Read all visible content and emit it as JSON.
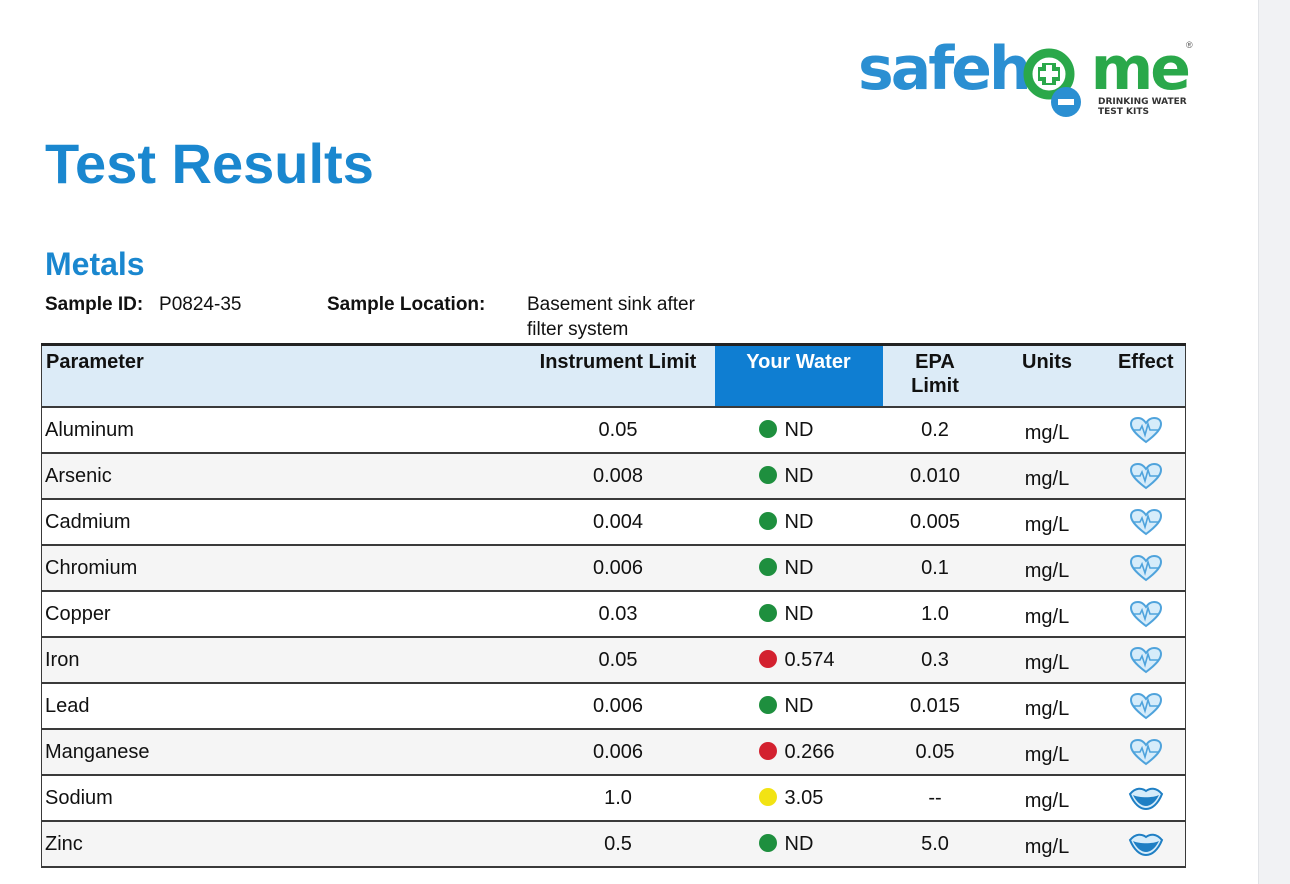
{
  "logo": {
    "word_before": "safeh",
    "word_after": "me",
    "tagline_line1": "DRINKING WATER",
    "tagline_line2": "TEST KITS",
    "registered": "®"
  },
  "title": "Test Results",
  "section": "Metals",
  "sample": {
    "id_label": "Sample ID:",
    "id_value": "P0824-35",
    "location_label": "Sample Location:",
    "location_line1": "Basement sink after",
    "location_line2": "filter system"
  },
  "table": {
    "headers": {
      "parameter": "Parameter",
      "instrument_limit": "Instrument Limit",
      "your_water": "Your Water",
      "epa_limit_line1": "EPA",
      "epa_limit_line2": "Limit",
      "units": "Units",
      "effect": "Effect"
    },
    "rows": [
      {
        "parameter": "Aluminum",
        "instrument_limit": "0.05",
        "status": "green",
        "your_water": "ND",
        "epa_limit": "0.2",
        "units": "mg/L",
        "effect": "heart-icon"
      },
      {
        "parameter": "Arsenic",
        "instrument_limit": "0.008",
        "status": "green",
        "your_water": "ND",
        "epa_limit": "0.010",
        "units": "mg/L",
        "effect": "heart-icon"
      },
      {
        "parameter": "Cadmium",
        "instrument_limit": "0.004",
        "status": "green",
        "your_water": "ND",
        "epa_limit": "0.005",
        "units": "mg/L",
        "effect": "heart-icon"
      },
      {
        "parameter": "Chromium",
        "instrument_limit": "0.006",
        "status": "green",
        "your_water": "ND",
        "epa_limit": "0.1",
        "units": "mg/L",
        "effect": "heart-icon"
      },
      {
        "parameter": "Copper",
        "instrument_limit": "0.03",
        "status": "green",
        "your_water": "ND",
        "epa_limit": "1.0",
        "units": "mg/L",
        "effect": "heart-icon"
      },
      {
        "parameter": "Iron",
        "instrument_limit": "0.05",
        "status": "red",
        "your_water": "0.574",
        "epa_limit": "0.3",
        "units": "mg/L",
        "effect": "heart-icon"
      },
      {
        "parameter": "Lead",
        "instrument_limit": "0.006",
        "status": "green",
        "your_water": "ND",
        "epa_limit": "0.015",
        "units": "mg/L",
        "effect": "heart-icon"
      },
      {
        "parameter": "Manganese",
        "instrument_limit": "0.006",
        "status": "red",
        "your_water": "0.266",
        "epa_limit": "0.05",
        "units": "mg/L",
        "effect": "heart-icon"
      },
      {
        "parameter": "Sodium",
        "instrument_limit": "1.0",
        "status": "yellow",
        "your_water": "3.05",
        "epa_limit": "--",
        "units": "mg/L",
        "effect": "mouth-icon"
      },
      {
        "parameter": "Zinc",
        "instrument_limit": "0.5",
        "status": "green",
        "your_water": "ND",
        "epa_limit": "5.0",
        "units": "mg/L",
        "effect": "mouth-icon"
      }
    ]
  },
  "colors": {
    "brand_blue": "#1a87cf",
    "brand_green": "#2aa84a",
    "header_bg": "#dcebf7",
    "your_water_bg": "#0f7ed2",
    "status_green": "#1e8f3e",
    "status_red": "#d3212f",
    "status_yellow": "#f2e313"
  }
}
